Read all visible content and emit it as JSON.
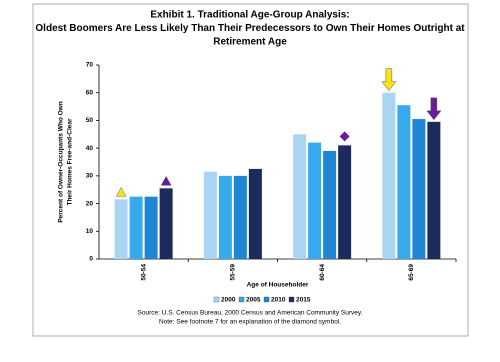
{
  "chart_data": {
    "type": "bar",
    "title": [
      "Exhibit 1. Traditional Age-Group Analysis:",
      "Oldest Boomers Are Less Likely Than Their Predecessors to Own Their Homes Outright at",
      "Retirement Age"
    ],
    "y_label": [
      "Percent of Owner-Occupants Who Own",
      "Their Homes Free-and-Clear"
    ],
    "x_label": "Age of Householder",
    "categories": [
      "50-54",
      "55-59",
      "60-64",
      "65-69"
    ],
    "series": [
      {
        "name": "2000",
        "color": "#a9d5f3",
        "values": [
          21.5,
          31.5,
          45,
          60
        ]
      },
      {
        "name": "2005",
        "color": "#36aaec",
        "values": [
          22.5,
          30,
          42,
          55.5
        ]
      },
      {
        "name": "2010",
        "color": "#1f86d6",
        "values": [
          22.5,
          30,
          39,
          50.5
        ]
      },
      {
        "name": "2015",
        "color": "#1c2a5c",
        "values": [
          25.5,
          32.5,
          41,
          49.5
        ]
      }
    ],
    "ylim": [
      0,
      70
    ],
    "yticks": [
      0,
      10,
      20,
      30,
      40,
      50,
      60,
      70
    ],
    "grid": false,
    "source": [
      "Source: U.S. Census Bureau, 2000 Census and American Community Survey.",
      "Note: See footnote 7 for an explanation of the diamond symbol."
    ]
  }
}
